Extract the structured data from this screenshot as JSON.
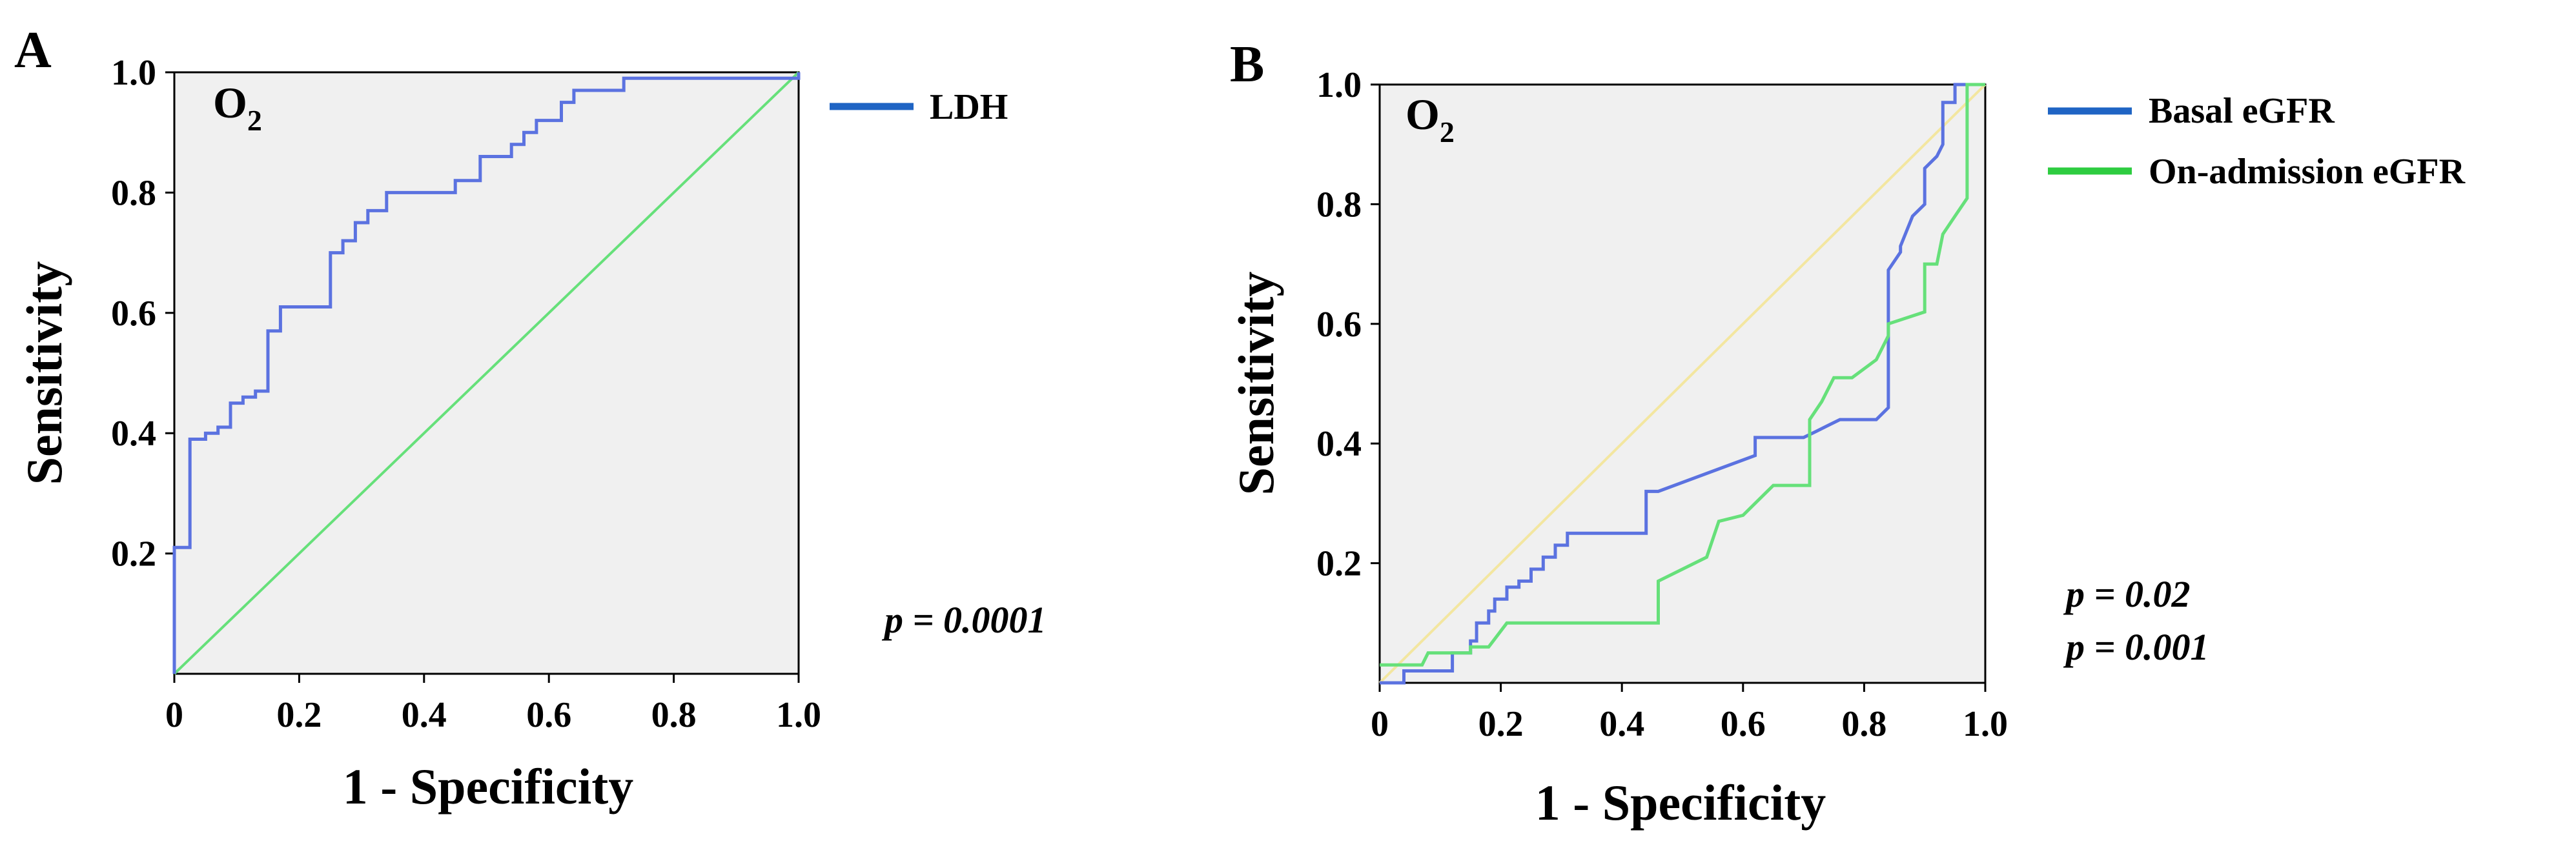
{
  "chart_data": [
    {
      "panel": "A",
      "type": "line",
      "title": "",
      "annotation_main": "O",
      "annotation_sub": "2",
      "xlabel": "1 - Specificity",
      "ylabel": "Sensitivity",
      "xlim": [
        0,
        1
      ],
      "ylim": [
        0,
        1
      ],
      "xticks": [
        {
          "v": 0,
          "label": "0"
        },
        {
          "v": 0.2,
          "label": "0.2"
        },
        {
          "v": 0.4,
          "label": "0.4"
        },
        {
          "v": 0.6,
          "label": "0.6"
        },
        {
          "v": 0.8,
          "label": "0.8"
        },
        {
          "v": 1.0,
          "label": "1.0"
        }
      ],
      "yticks": [
        {
          "v": 0.2,
          "label": "0.2"
        },
        {
          "v": 0.4,
          "label": "0.4"
        },
        {
          "v": 0.6,
          "label": "0.6"
        },
        {
          "v": 0.8,
          "label": "0.8"
        },
        {
          "v": 1.0,
          "label": "1.0"
        }
      ],
      "pvalues": [
        "p = 0.0001"
      ],
      "legend_position": "right",
      "series": [
        {
          "name": "LDH",
          "color": "#5b72e0",
          "legend_color": "#1f64c4",
          "in_legend": true,
          "points": [
            [
              0,
              0
            ],
            [
              0,
              0.21
            ],
            [
              0.025,
              0.21
            ],
            [
              0.025,
              0.39
            ],
            [
              0.05,
              0.39
            ],
            [
              0.05,
              0.4
            ],
            [
              0.07,
              0.4
            ],
            [
              0.07,
              0.41
            ],
            [
              0.09,
              0.41
            ],
            [
              0.09,
              0.45
            ],
            [
              0.11,
              0.45
            ],
            [
              0.11,
              0.46
            ],
            [
              0.13,
              0.46
            ],
            [
              0.13,
              0.47
            ],
            [
              0.15,
              0.47
            ],
            [
              0.15,
              0.57
            ],
            [
              0.17,
              0.57
            ],
            [
              0.17,
              0.61
            ],
            [
              0.25,
              0.61
            ],
            [
              0.25,
              0.7
            ],
            [
              0.27,
              0.7
            ],
            [
              0.27,
              0.72
            ],
            [
              0.29,
              0.72
            ],
            [
              0.29,
              0.75
            ],
            [
              0.31,
              0.75
            ],
            [
              0.31,
              0.77
            ],
            [
              0.34,
              0.77
            ],
            [
              0.34,
              0.8
            ],
            [
              0.45,
              0.8
            ],
            [
              0.45,
              0.82
            ],
            [
              0.49,
              0.82
            ],
            [
              0.49,
              0.86
            ],
            [
              0.54,
              0.86
            ],
            [
              0.54,
              0.88
            ],
            [
              0.56,
              0.88
            ],
            [
              0.56,
              0.9
            ],
            [
              0.58,
              0.9
            ],
            [
              0.58,
              0.92
            ],
            [
              0.62,
              0.92
            ],
            [
              0.62,
              0.95
            ],
            [
              0.64,
              0.95
            ],
            [
              0.64,
              0.97
            ],
            [
              0.72,
              0.97
            ],
            [
              0.72,
              0.99
            ],
            [
              1.0,
              0.99
            ],
            [
              1.0,
              1.0
            ]
          ]
        },
        {
          "name": "Reference",
          "color": "#66e07a",
          "in_legend": false,
          "points": [
            [
              0,
              0
            ],
            [
              1,
              1
            ]
          ]
        }
      ]
    },
    {
      "panel": "B",
      "type": "line",
      "title": "",
      "annotation_main": "O",
      "annotation_sub": "2",
      "xlabel": "1 - Specificity",
      "ylabel": "Sensitivity",
      "xlim": [
        0,
        1
      ],
      "ylim": [
        0,
        1
      ],
      "xticks": [
        {
          "v": 0,
          "label": "0"
        },
        {
          "v": 0.2,
          "label": "0.2"
        },
        {
          "v": 0.4,
          "label": "0.4"
        },
        {
          "v": 0.6,
          "label": "0.6"
        },
        {
          "v": 0.8,
          "label": "0.8"
        },
        {
          "v": 1.0,
          "label": "1.0"
        }
      ],
      "yticks": [
        {
          "v": 0.2,
          "label": "0.2"
        },
        {
          "v": 0.4,
          "label": "0.4"
        },
        {
          "v": 0.6,
          "label": "0.6"
        },
        {
          "v": 0.8,
          "label": "0.8"
        },
        {
          "v": 1.0,
          "label": "1.0"
        }
      ],
      "pvalues": [
        "p = 0.02",
        "p = 0.001"
      ],
      "legend_position": "right",
      "series": [
        {
          "name": "Basal eGFR",
          "color": "#5b72e0",
          "legend_color": "#1f64c4",
          "in_legend": true,
          "points": [
            [
              0,
              0
            ],
            [
              0.04,
              0
            ],
            [
              0.04,
              0.02
            ],
            [
              0.12,
              0.02
            ],
            [
              0.12,
              0.05
            ],
            [
              0.15,
              0.05
            ],
            [
              0.15,
              0.07
            ],
            [
              0.16,
              0.07
            ],
            [
              0.16,
              0.1
            ],
            [
              0.18,
              0.1
            ],
            [
              0.18,
              0.12
            ],
            [
              0.19,
              0.12
            ],
            [
              0.19,
              0.14
            ],
            [
              0.21,
              0.14
            ],
            [
              0.21,
              0.16
            ],
            [
              0.23,
              0.16
            ],
            [
              0.23,
              0.17
            ],
            [
              0.25,
              0.17
            ],
            [
              0.25,
              0.19
            ],
            [
              0.27,
              0.19
            ],
            [
              0.27,
              0.21
            ],
            [
              0.29,
              0.21
            ],
            [
              0.29,
              0.23
            ],
            [
              0.31,
              0.23
            ],
            [
              0.31,
              0.25
            ],
            [
              0.44,
              0.25
            ],
            [
              0.44,
              0.32
            ],
            [
              0.46,
              0.32
            ],
            [
              0.62,
              0.38
            ],
            [
              0.62,
              0.41
            ],
            [
              0.7,
              0.41
            ],
            [
              0.72,
              0.42
            ],
            [
              0.74,
              0.43
            ],
            [
              0.76,
              0.44
            ],
            [
              0.82,
              0.44
            ],
            [
              0.84,
              0.46
            ],
            [
              0.84,
              0.69
            ],
            [
              0.86,
              0.72
            ],
            [
              0.86,
              0.73
            ],
            [
              0.88,
              0.78
            ],
            [
              0.9,
              0.8
            ],
            [
              0.9,
              0.86
            ],
            [
              0.92,
              0.88
            ],
            [
              0.93,
              0.9
            ],
            [
              0.93,
              0.97
            ],
            [
              0.95,
              0.97
            ],
            [
              0.95,
              1.0
            ],
            [
              1.0,
              1.0
            ]
          ]
        },
        {
          "name": "On-admission eGFR",
          "color": "#66e07a",
          "legend_color": "#2ecc40",
          "in_legend": true,
          "points": [
            [
              0,
              0.03
            ],
            [
              0.07,
              0.03
            ],
            [
              0.08,
              0.05
            ],
            [
              0.15,
              0.05
            ],
            [
              0.15,
              0.06
            ],
            [
              0.18,
              0.06
            ],
            [
              0.21,
              0.1
            ],
            [
              0.46,
              0.1
            ],
            [
              0.46,
              0.17
            ],
            [
              0.54,
              0.21
            ],
            [
              0.56,
              0.27
            ],
            [
              0.6,
              0.28
            ],
            [
              0.63,
              0.31
            ],
            [
              0.65,
              0.33
            ],
            [
              0.71,
              0.33
            ],
            [
              0.71,
              0.44
            ],
            [
              0.73,
              0.47
            ],
            [
              0.75,
              0.51
            ],
            [
              0.78,
              0.51
            ],
            [
              0.82,
              0.54
            ],
            [
              0.84,
              0.58
            ],
            [
              0.84,
              0.6
            ],
            [
              0.9,
              0.62
            ],
            [
              0.9,
              0.7
            ],
            [
              0.92,
              0.7
            ],
            [
              0.93,
              0.75
            ],
            [
              0.95,
              0.78
            ],
            [
              0.97,
              0.81
            ],
            [
              0.97,
              1.0
            ],
            [
              1.0,
              1.0
            ]
          ]
        },
        {
          "name": "Reference",
          "color": "#f3e6a0",
          "in_legend": false,
          "points": [
            [
              0,
              0
            ],
            [
              1,
              1
            ]
          ]
        }
      ]
    }
  ]
}
